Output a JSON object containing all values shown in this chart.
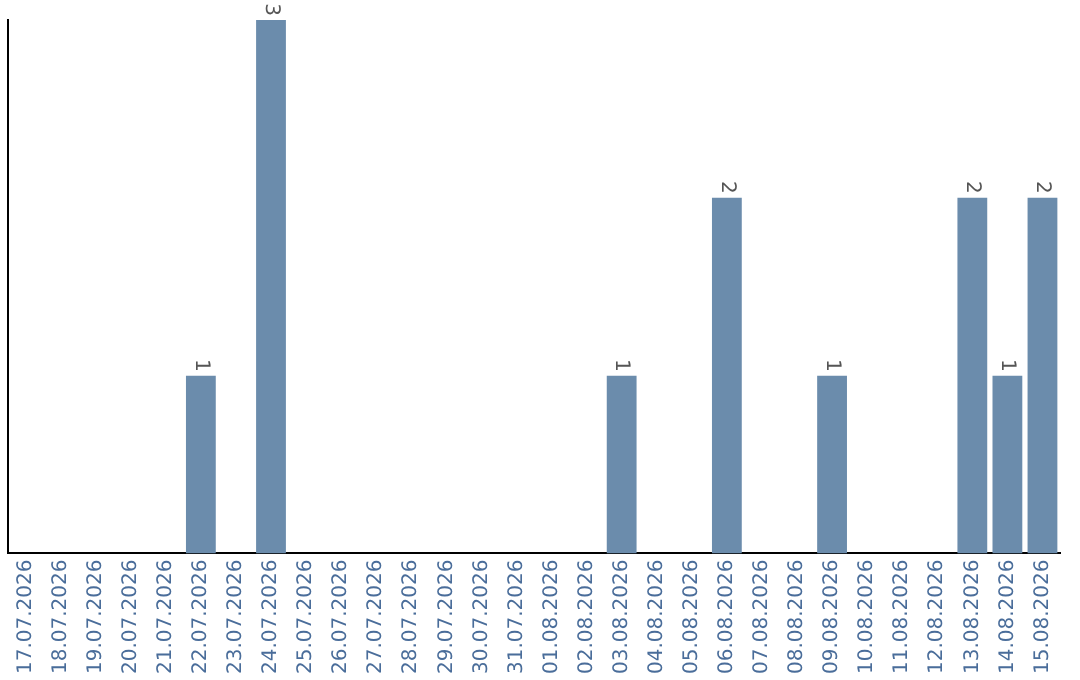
{
  "chart_data": {
    "type": "bar",
    "categories": [
      "17.07.2026",
      "18.07.2026",
      "19.07.2026",
      "20.07.2026",
      "21.07.2026",
      "22.07.2026",
      "23.07.2026",
      "24.07.2026",
      "25.07.2026",
      "26.07.2026",
      "27.07.2026",
      "28.07.2026",
      "29.07.2026",
      "30.07.2026",
      "31.07.2026",
      "01.08.2026",
      "02.08.2026",
      "03.08.2026",
      "04.08.2026",
      "05.08.2026",
      "06.08.2026",
      "07.08.2026",
      "08.08.2026",
      "09.08.2026",
      "10.08.2026",
      "11.08.2026",
      "12.08.2026",
      "13.08.2026",
      "14.08.2026",
      "15.08.2026"
    ],
    "values": [
      0,
      0,
      0,
      0,
      0,
      1,
      0,
      3,
      0,
      0,
      0,
      0,
      0,
      0,
      0,
      0,
      0,
      1,
      0,
      0,
      2,
      0,
      0,
      1,
      0,
      0,
      0,
      2,
      1,
      2
    ],
    "value_labels": [
      null,
      null,
      null,
      null,
      null,
      "1",
      null,
      "3",
      null,
      null,
      null,
      null,
      null,
      null,
      null,
      null,
      null,
      "1",
      null,
      null,
      "2",
      null,
      null,
      "1",
      null,
      null,
      null,
      "2",
      "1",
      "2"
    ],
    "color": "#6b8cac",
    "grid": false,
    "legend": false,
    "tick_labels": "x"
  }
}
